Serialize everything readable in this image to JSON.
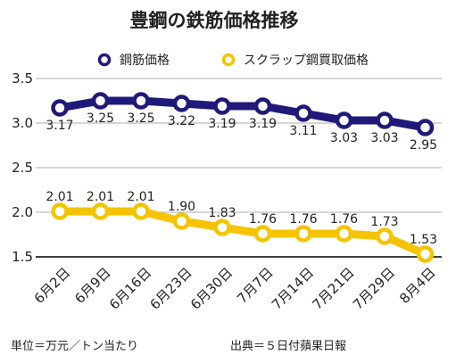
{
  "chart_data": {
    "type": "line",
    "title": "豊鋼の鉄筋価格推移",
    "categories": [
      "6月2日",
      "6月9日",
      "6月16日",
      "6月23日",
      "6月30日",
      "7月7日",
      "7月14日",
      "7月21日",
      "7月29日",
      "8月4日"
    ],
    "ylim": [
      1.5,
      3.5
    ],
    "yticks": [
      "1.5",
      "2.0",
      "2.5",
      "3.0",
      "3.5"
    ],
    "grid": true,
    "legend_position": "top",
    "series": [
      {
        "name": "鋼筋価格",
        "color": "#1f1a7a",
        "values": [
          3.17,
          3.25,
          3.25,
          3.22,
          3.19,
          3.19,
          3.11,
          3.03,
          3.03,
          2.95
        ],
        "labels": [
          "3.17",
          "3.25",
          "3.25",
          "3.22",
          "3.19",
          "3.19",
          "3.11",
          "3.03",
          "3.03",
          "2.95"
        ]
      },
      {
        "name": "スクラップ鋼買取価格",
        "color": "#f5c400",
        "values": [
          2.01,
          2.01,
          2.01,
          1.9,
          1.83,
          1.76,
          1.76,
          1.76,
          1.73,
          1.53
        ],
        "labels": [
          "2.01",
          "2.01",
          "2.01",
          "1.90",
          "1.83",
          "1.76",
          "1.76",
          "1.76",
          "1.73",
          "1.53"
        ]
      }
    ]
  },
  "footer": {
    "unit": "単位＝万元／トン当たり",
    "source": "出典＝５日付蘋果日報"
  }
}
